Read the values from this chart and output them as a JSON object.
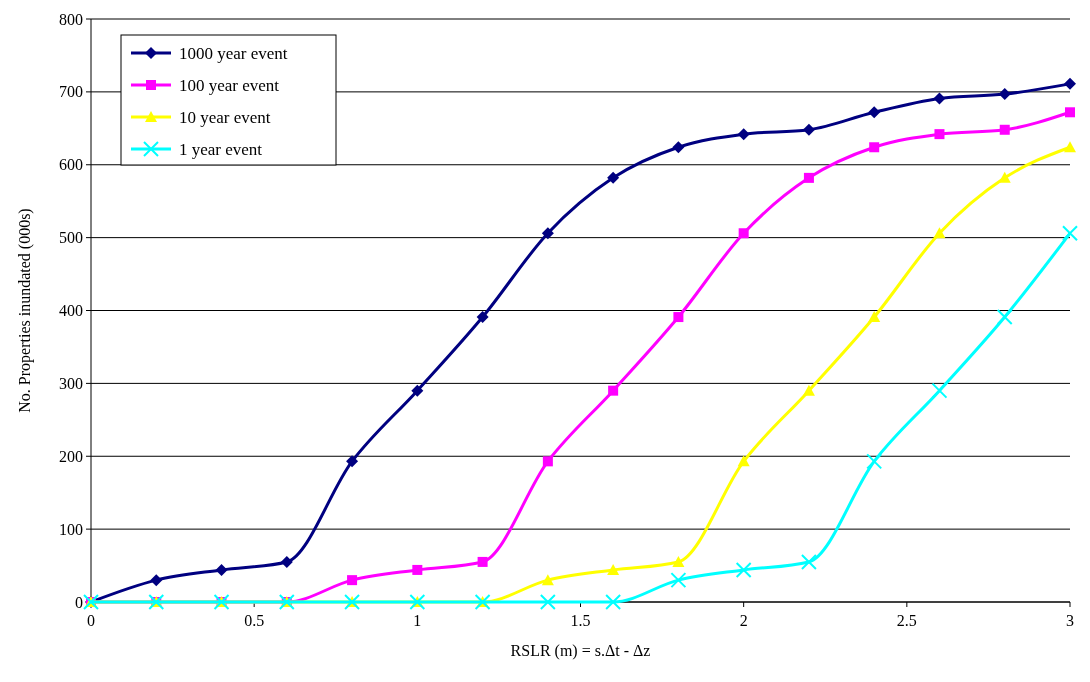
{
  "chart_data": {
    "type": "line",
    "xlabel": "RSLR (m) = s.Δt - Δz",
    "ylabel": "No. Properties inundated (000s)",
    "x": [
      0,
      0.2,
      0.4,
      0.6,
      0.8,
      1.0,
      1.2,
      1.4,
      1.6,
      1.8,
      2.0,
      2.2,
      2.4,
      2.6,
      2.8,
      3.0
    ],
    "series": [
      {
        "name": "1000 year event",
        "color": "#000080",
        "marker": "diamond",
        "values": [
          0,
          30,
          44,
          55,
          193,
          290,
          391,
          506,
          582,
          624,
          642,
          648,
          672,
          691,
          697,
          711
        ]
      },
      {
        "name": "100 year event",
        "color": "#ff00ff",
        "marker": "square",
        "values": [
          0,
          0,
          0,
          0,
          30,
          44,
          55,
          193,
          290,
          391,
          506,
          582,
          624,
          642,
          648,
          672
        ]
      },
      {
        "name": "10 year event",
        "color": "#ffff00",
        "marker": "triangle",
        "values": [
          0,
          0,
          0,
          0,
          0,
          0,
          0,
          30,
          44,
          55,
          193,
          290,
          391,
          506,
          582,
          624
        ]
      },
      {
        "name": "1 year event",
        "color": "#00ffff",
        "marker": "cross",
        "values": [
          0,
          0,
          0,
          0,
          0,
          0,
          0,
          0,
          0,
          30,
          44,
          55,
          193,
          290,
          391,
          506
        ]
      }
    ],
    "xlim": [
      0,
      3
    ],
    "xticks": [
      0,
      0.5,
      1,
      1.5,
      2,
      2.5,
      3
    ],
    "ylim": [
      0,
      800
    ],
    "yticks": [
      0,
      100,
      200,
      300,
      400,
      500,
      600,
      700,
      800
    ],
    "grid": "y",
    "legend": "top left"
  }
}
